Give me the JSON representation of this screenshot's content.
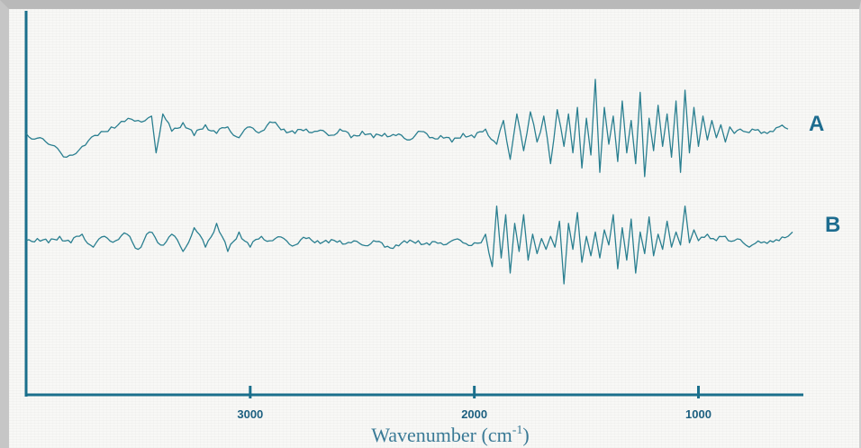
{
  "chart_data": {
    "type": "line",
    "xlabel": "Wavenumber (cm",
    "xlabel_sup": "-1",
    "xlabel_suffix": ")",
    "xlim": [
      4000,
      580
    ],
    "x_ticks": [
      {
        "value": 3000,
        "label": "3000"
      },
      {
        "value": 2000,
        "label": "2000"
      },
      {
        "value": 1000,
        "label": "1000"
      }
    ],
    "colors": {
      "axis": "#1a6f8c",
      "line": "#2a7f90",
      "text": "#1d6c8f"
    },
    "series": [
      {
        "name": "A",
        "baseline": 0.0,
        "x": [
          4000,
          3900,
          3820,
          3750,
          3680,
          3620,
          3560,
          3500,
          3440,
          3420,
          3390,
          3350,
          3300,
          3250,
          3200,
          3150,
          3100,
          3050,
          3000,
          2950,
          2900,
          2850,
          2800,
          2750,
          2700,
          2650,
          2600,
          2550,
          2500,
          2450,
          2400,
          2350,
          2300,
          2250,
          2200,
          2150,
          2100,
          2050,
          2000,
          1950,
          1900,
          1870,
          1840,
          1810,
          1780,
          1750,
          1720,
          1690,
          1660,
          1630,
          1600,
          1580,
          1560,
          1540,
          1520,
          1500,
          1480,
          1460,
          1440,
          1420,
          1400,
          1380,
          1360,
          1340,
          1320,
          1300,
          1280,
          1260,
          1240,
          1220,
          1200,
          1180,
          1160,
          1140,
          1120,
          1100,
          1080,
          1060,
          1040,
          1020,
          1000,
          980,
          960,
          940,
          920,
          900,
          880,
          860,
          840,
          800,
          760,
          720,
          680,
          640,
          600
        ],
        "y": [
          0.0,
          -0.5,
          -1.1,
          -0.6,
          -0.1,
          0.3,
          0.55,
          0.6,
          0.8,
          -0.9,
          0.9,
          0.1,
          0.5,
          -0.1,
          0.4,
          0.0,
          0.3,
          -0.2,
          0.3,
          0.1,
          0.5,
          0.2,
          0.0,
          0.2,
          0.1,
          -0.1,
          0.2,
          -0.2,
          0.1,
          -0.2,
          0.0,
          -0.1,
          -0.3,
          0.1,
          -0.2,
          -0.1,
          -0.4,
          0.0,
          -0.2,
          0.2,
          -0.5,
          0.6,
          -1.2,
          0.9,
          -0.8,
          1.0,
          -0.4,
          0.8,
          -1.4,
          1.1,
          -0.6,
          0.9,
          -0.9,
          1.2,
          -1.6,
          0.7,
          -1.0,
          2.5,
          -1.8,
          1.2,
          -0.5,
          0.8,
          -1.3,
          1.5,
          -0.9,
          0.6,
          -1.4,
          1.9,
          -2.0,
          0.7,
          -0.8,
          1.3,
          -0.6,
          0.9,
          -1.1,
          1.5,
          -1.8,
          2.0,
          -0.9,
          1.2,
          -0.6,
          0.8,
          -0.3,
          0.6,
          -0.2,
          0.4,
          -0.4,
          0.3,
          0.0,
          0.1,
          0.2,
          0.0,
          0.1,
          0.3,
          0.2
        ]
      },
      {
        "name": "B",
        "baseline": -3.5,
        "x": [
          4000,
          3950,
          3900,
          3850,
          3800,
          3750,
          3700,
          3650,
          3600,
          3550,
          3500,
          3450,
          3400,
          3350,
          3300,
          3250,
          3200,
          3150,
          3100,
          3050,
          3000,
          2950,
          2900,
          2850,
          2800,
          2750,
          2700,
          2650,
          2600,
          2550,
          2500,
          2450,
          2400,
          2350,
          2300,
          2250,
          2200,
          2150,
          2100,
          2050,
          2000,
          1970,
          1950,
          1920,
          1900,
          1880,
          1860,
          1840,
          1820,
          1800,
          1780,
          1760,
          1740,
          1720,
          1700,
          1680,
          1660,
          1640,
          1620,
          1600,
          1580,
          1560,
          1540,
          1520,
          1500,
          1480,
          1460,
          1440,
          1420,
          1400,
          1380,
          1360,
          1340,
          1320,
          1300,
          1280,
          1260,
          1240,
          1220,
          1200,
          1180,
          1160,
          1140,
          1120,
          1100,
          1080,
          1060,
          1040,
          1020,
          1000,
          960,
          920,
          880,
          840,
          800,
          760,
          720,
          680,
          640,
          600,
          580
        ],
        "y": [
          0.0,
          0.1,
          -0.1,
          0.2,
          -0.1,
          0.3,
          -0.3,
          0.2,
          0.0,
          0.3,
          -0.4,
          0.4,
          -0.2,
          0.3,
          -0.5,
          0.6,
          -0.3,
          0.8,
          -0.5,
          0.4,
          -0.3,
          0.2,
          0.0,
          0.1,
          -0.2,
          0.1,
          0.0,
          -0.1,
          0.0,
          -0.1,
          -0.2,
          0.0,
          -0.3,
          -0.2,
          -0.1,
          0.0,
          -0.2,
          -0.1,
          0.0,
          -0.1,
          -0.1,
          -0.1,
          0.3,
          -1.2,
          1.6,
          -0.8,
          1.2,
          -1.5,
          0.8,
          -0.5,
          1.2,
          -0.9,
          0.3,
          -0.6,
          0.1,
          -0.4,
          0.2,
          -0.3,
          0.9,
          -2.0,
          0.8,
          -0.4,
          1.3,
          -1.0,
          0.2,
          -0.7,
          0.4,
          -0.8,
          0.5,
          -0.2,
          1.2,
          -1.3,
          0.6,
          -0.9,
          1.0,
          -1.5,
          0.4,
          -0.6,
          1.1,
          -0.7,
          0.3,
          -0.4,
          0.9,
          -0.3,
          0.4,
          -0.2,
          1.6,
          -0.1,
          0.5,
          0.0,
          0.3,
          0.0,
          0.2,
          0.0,
          -0.1,
          -0.2,
          -0.1,
          0.0,
          0.0,
          0.2,
          0.4
        ]
      }
    ]
  }
}
